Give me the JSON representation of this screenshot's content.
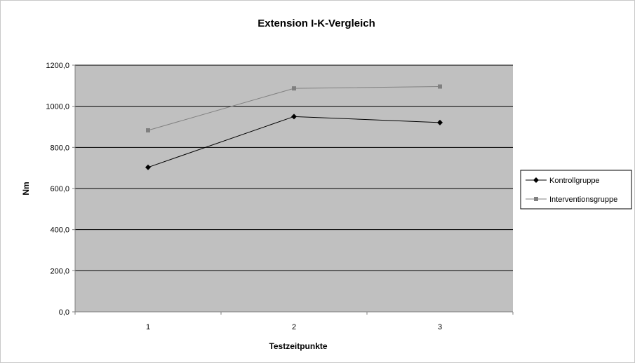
{
  "chart_data": {
    "type": "line",
    "title": "Extension I-K-Vergleich",
    "xlabel": "Testzeitpunkte",
    "ylabel": "Nm",
    "categories": [
      "1",
      "2",
      "3"
    ],
    "y_ticks": [
      "0,0",
      "200,0",
      "400,0",
      "600,0",
      "800,0",
      "1000,0",
      "1200,0"
    ],
    "ylim": [
      0,
      1200
    ],
    "grid": true,
    "legend_position": "right",
    "series": [
      {
        "name": "Kontrollgruppe",
        "values": [
          703,
          950,
          921
        ],
        "color": "#000000",
        "marker": "diamond"
      },
      {
        "name": "Interventionsgruppe",
        "values": [
          883,
          1087,
          1096
        ],
        "color": "#808080",
        "marker": "square"
      }
    ],
    "plot_background": "#c0c0c0"
  }
}
